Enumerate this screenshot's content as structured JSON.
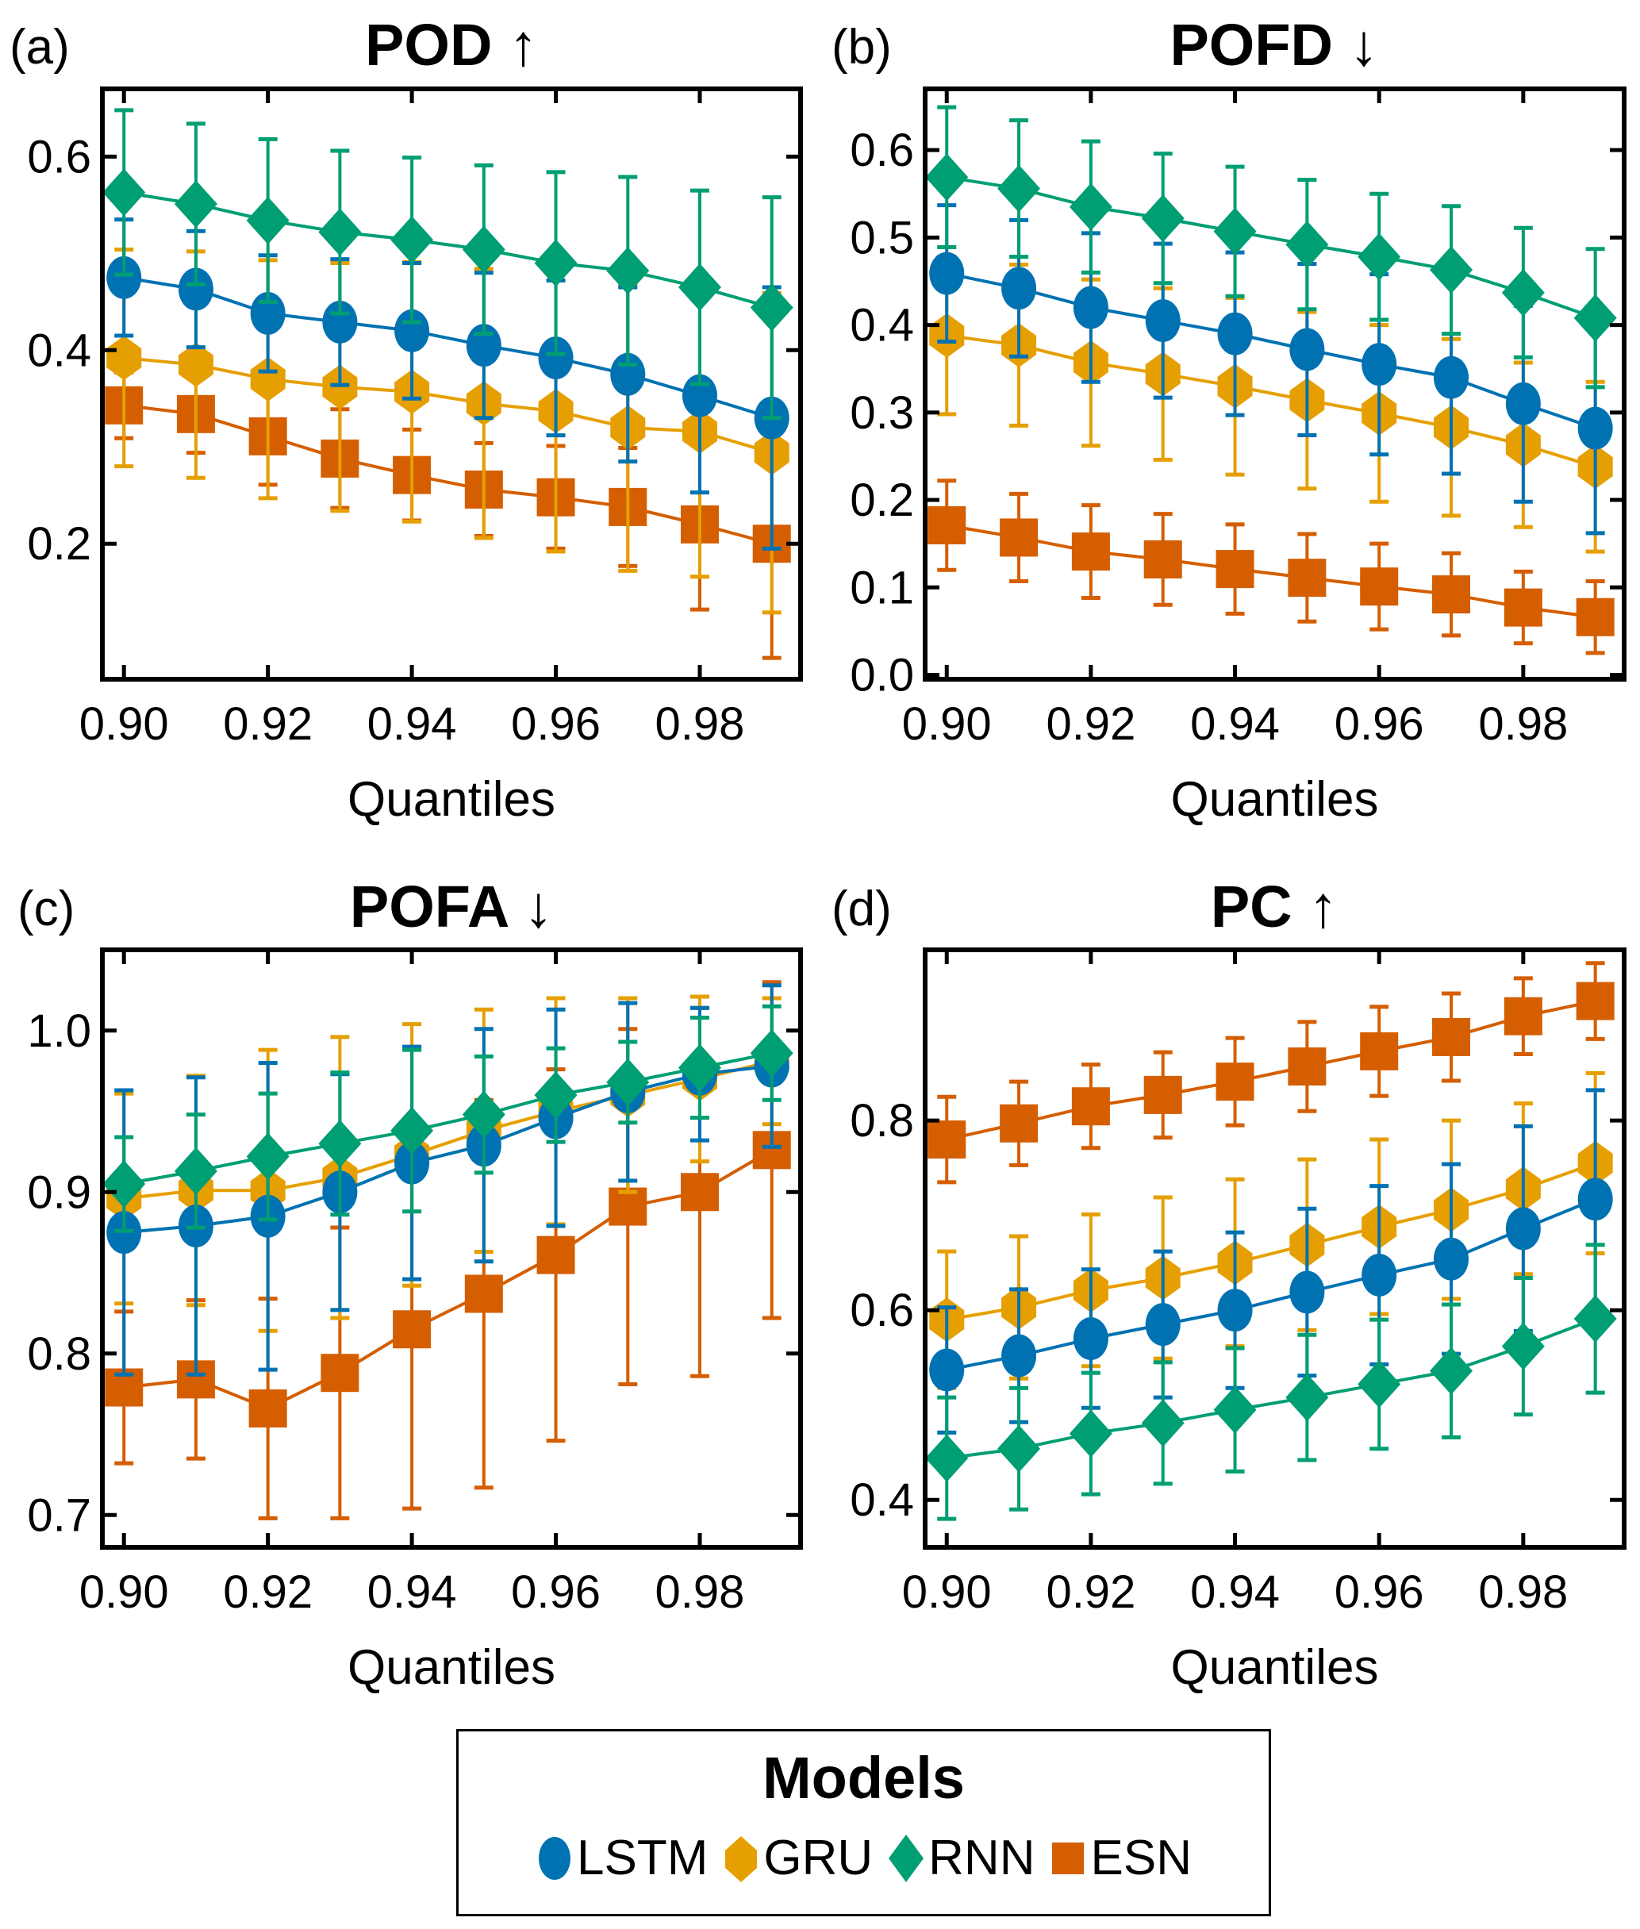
{
  "figure": {
    "legend": {
      "title": "Models",
      "items": [
        {
          "name": "LSTM",
          "color": "#0072B2",
          "marker": "circle"
        },
        {
          "name": "GRU",
          "color": "#E69F00",
          "marker": "hexagon"
        },
        {
          "name": "RNN",
          "color": "#009E73",
          "marker": "diamond"
        },
        {
          "name": "ESN",
          "color": "#D55E00",
          "marker": "square"
        }
      ]
    }
  },
  "chart_data": [
    {
      "panel": "(a)",
      "type": "line",
      "title": "POD ↑",
      "xlabel": "Quantiles",
      "ylabel": "",
      "x": [
        0.9,
        0.91,
        0.92,
        0.93,
        0.94,
        0.95,
        0.96,
        0.97,
        0.98,
        0.99
      ],
      "xticks": [
        "0.90",
        "0.92",
        "0.94",
        "0.96",
        "0.98"
      ],
      "xtick_values": [
        0.9,
        0.92,
        0.94,
        0.96,
        0.98
      ],
      "yticks": [
        "0.2",
        "0.4",
        "0.6"
      ],
      "ytick_values": [
        0.2,
        0.4,
        0.6
      ],
      "xlim": [
        0.897,
        0.994
      ],
      "ylim": [
        0.06,
        0.67
      ],
      "grid": false,
      "series": [
        {
          "name": "LSTM",
          "values": [
            0.475,
            0.463,
            0.438,
            0.429,
            0.42,
            0.405,
            0.392,
            0.375,
            0.353,
            0.33
          ],
          "err": [
            0.06,
            0.06,
            0.06,
            0.065,
            0.07,
            0.075,
            0.08,
            0.09,
            0.1,
            0.135
          ]
        },
        {
          "name": "GRU",
          "values": [
            0.392,
            0.385,
            0.37,
            0.362,
            0.357,
            0.345,
            0.337,
            0.32,
            0.316,
            0.294
          ],
          "err": [
            0.112,
            0.117,
            0.123,
            0.128,
            0.134,
            0.139,
            0.145,
            0.148,
            0.15,
            0.165
          ]
        },
        {
          "name": "RNN",
          "values": [
            0.563,
            0.551,
            0.534,
            0.522,
            0.514,
            0.504,
            0.49,
            0.482,
            0.465,
            0.444
          ],
          "err": [
            0.085,
            0.083,
            0.084,
            0.084,
            0.085,
            0.087,
            0.094,
            0.097,
            0.1,
            0.114
          ]
        },
        {
          "name": "ESN",
          "values": [
            0.343,
            0.334,
            0.311,
            0.288,
            0.271,
            0.256,
            0.248,
            0.238,
            0.22,
            0.2
          ],
          "err": [
            0.034,
            0.04,
            0.05,
            0.051,
            0.047,
            0.048,
            0.053,
            0.061,
            0.088,
            0.118
          ]
        }
      ]
    },
    {
      "panel": "(b)",
      "type": "line",
      "title": "POFD ↓",
      "xlabel": "Quantiles",
      "ylabel": "",
      "x": [
        0.9,
        0.91,
        0.92,
        0.93,
        0.94,
        0.95,
        0.96,
        0.97,
        0.98,
        0.99
      ],
      "xticks": [
        "0.90",
        "0.92",
        "0.94",
        "0.96",
        "0.98"
      ],
      "xtick_values": [
        0.9,
        0.92,
        0.94,
        0.96,
        0.98
      ],
      "yticks": [
        "0.0",
        "0.1",
        "0.2",
        "0.3",
        "0.4",
        "0.5",
        "0.6"
      ],
      "ytick_values": [
        0.0,
        0.1,
        0.2,
        0.3,
        0.4,
        0.5,
        0.6
      ],
      "xlim": [
        0.897,
        0.994
      ],
      "ylim": [
        -0.005,
        0.67
      ],
      "grid": false,
      "series": [
        {
          "name": "LSTM",
          "values": [
            0.459,
            0.442,
            0.42,
            0.405,
            0.39,
            0.372,
            0.355,
            0.34,
            0.31,
            0.282
          ],
          "err": [
            0.078,
            0.078,
            0.085,
            0.088,
            0.093,
            0.098,
            0.103,
            0.11,
            0.112,
            0.12
          ]
        },
        {
          "name": "GRU",
          "values": [
            0.388,
            0.377,
            0.357,
            0.344,
            0.33,
            0.314,
            0.299,
            0.283,
            0.263,
            0.238
          ],
          "err": [
            0.09,
            0.092,
            0.095,
            0.098,
            0.101,
            0.101,
            0.101,
            0.101,
            0.094,
            0.097
          ]
        },
        {
          "name": "RNN",
          "values": [
            0.569,
            0.556,
            0.535,
            0.522,
            0.507,
            0.492,
            0.478,
            0.463,
            0.437,
            0.408
          ],
          "err": [
            0.08,
            0.078,
            0.075,
            0.074,
            0.074,
            0.074,
            0.072,
            0.073,
            0.074,
            0.079
          ]
        },
        {
          "name": "ESN",
          "values": [
            0.171,
            0.157,
            0.141,
            0.132,
            0.121,
            0.111,
            0.101,
            0.092,
            0.077,
            0.066
          ],
          "err": [
            0.051,
            0.05,
            0.053,
            0.052,
            0.051,
            0.05,
            0.049,
            0.047,
            0.041,
            0.041
          ]
        }
      ]
    },
    {
      "panel": "(c)",
      "type": "line",
      "title": "POFA ↓",
      "xlabel": "Quantiles",
      "ylabel": "",
      "x": [
        0.9,
        0.91,
        0.92,
        0.93,
        0.94,
        0.95,
        0.96,
        0.97,
        0.98,
        0.99
      ],
      "xticks": [
        "0.90",
        "0.92",
        "0.94",
        "0.96",
        "0.98"
      ],
      "xtick_values": [
        0.9,
        0.92,
        0.94,
        0.96,
        0.98
      ],
      "yticks": [
        "0.7",
        "0.8",
        "0.9",
        "1.0"
      ],
      "ytick_values": [
        0.7,
        0.8,
        0.9,
        1.0
      ],
      "xlim": [
        0.897,
        0.994
      ],
      "ylim": [
        0.68,
        1.05
      ],
      "grid": false,
      "series": [
        {
          "name": "LSTM",
          "values": [
            0.875,
            0.879,
            0.885,
            0.9,
            0.918,
            0.929,
            0.946,
            0.962,
            0.973,
            0.978
          ],
          "err": [
            0.088,
            0.092,
            0.095,
            0.073,
            0.072,
            0.072,
            0.067,
            0.055,
            0.041,
            0.05
          ]
        },
        {
          "name": "GRU",
          "values": [
            0.896,
            0.901,
            0.901,
            0.909,
            0.923,
            0.938,
            0.95,
            0.96,
            0.97,
            0.981
          ],
          "err": [
            0.065,
            0.071,
            0.087,
            0.087,
            0.081,
            0.075,
            0.07,
            0.06,
            0.051,
            0.039
          ]
        },
        {
          "name": "RNN",
          "values": [
            0.905,
            0.913,
            0.922,
            0.93,
            0.938,
            0.948,
            0.96,
            0.968,
            0.977,
            0.986
          ],
          "err": [
            0.029,
            0.035,
            0.039,
            0.044,
            0.05,
            0.036,
            0.029,
            0.025,
            0.031,
            0.029
          ]
        },
        {
          "name": "ESN",
          "values": [
            0.779,
            0.784,
            0.766,
            0.788,
            0.815,
            0.837,
            0.861,
            0.891,
            0.9,
            0.926
          ],
          "err": [
            0.047,
            0.049,
            0.068,
            0.09,
            0.111,
            0.12,
            0.115,
            0.11,
            0.114,
            0.104
          ]
        }
      ]
    },
    {
      "panel": "(d)",
      "type": "line",
      "title": "PC ↑",
      "xlabel": "Quantiles",
      "ylabel": "",
      "x": [
        0.9,
        0.91,
        0.92,
        0.93,
        0.94,
        0.95,
        0.96,
        0.97,
        0.98,
        0.99
      ],
      "xticks": [
        "0.90",
        "0.92",
        "0.94",
        "0.96",
        "0.98"
      ],
      "xtick_values": [
        0.9,
        0.92,
        0.94,
        0.96,
        0.98
      ],
      "yticks": [
        "0.4",
        "0.6",
        "0.8"
      ],
      "ytick_values": [
        0.4,
        0.6,
        0.8
      ],
      "xlim": [
        0.897,
        0.994
      ],
      "ylim": [
        0.35,
        0.98
      ],
      "grid": false,
      "series": [
        {
          "name": "LSTM",
          "values": [
            0.537,
            0.552,
            0.57,
            0.585,
            0.6,
            0.619,
            0.637,
            0.654,
            0.686,
            0.717
          ],
          "err": [
            0.066,
            0.07,
            0.073,
            0.077,
            0.082,
            0.088,
            0.094,
            0.1,
            0.108,
            0.115
          ]
        },
        {
          "name": "GRU",
          "values": [
            0.59,
            0.603,
            0.621,
            0.634,
            0.65,
            0.669,
            0.688,
            0.706,
            0.728,
            0.755
          ],
          "err": [
            0.072,
            0.075,
            0.08,
            0.085,
            0.088,
            0.09,
            0.092,
            0.094,
            0.09,
            0.095
          ]
        },
        {
          "name": "RNN",
          "values": [
            0.444,
            0.454,
            0.47,
            0.481,
            0.495,
            0.508,
            0.522,
            0.536,
            0.562,
            0.591
          ],
          "err": [
            0.064,
            0.064,
            0.064,
            0.064,
            0.065,
            0.066,
            0.068,
            0.07,
            0.072,
            0.078
          ]
        },
        {
          "name": "ESN",
          "values": [
            0.78,
            0.797,
            0.815,
            0.827,
            0.841,
            0.857,
            0.873,
            0.888,
            0.91,
            0.926
          ],
          "err": [
            0.045,
            0.044,
            0.044,
            0.045,
            0.046,
            0.047,
            0.047,
            0.046,
            0.04,
            0.04
          ]
        }
      ]
    }
  ]
}
